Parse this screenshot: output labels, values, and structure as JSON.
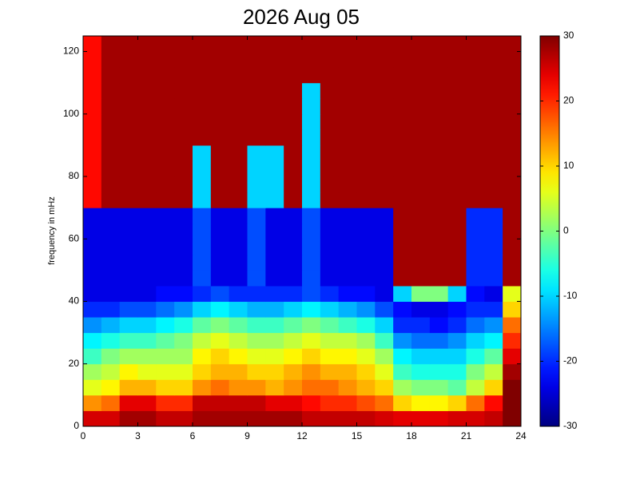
{
  "chart_data": {
    "type": "heatmap",
    "title": "2026 Aug 05",
    "y_label": "frequency in mHz",
    "colormap": "jet",
    "x_edges": [
      0,
      1,
      2,
      3,
      4,
      5,
      6,
      7,
      8,
      9,
      10,
      11,
      12,
      13,
      14,
      15,
      16,
      17,
      18,
      19,
      20,
      21,
      22,
      23,
      24
    ],
    "y_edges": [
      0,
      5,
      10,
      15,
      20,
      25,
      30,
      35,
      40,
      45,
      50,
      55,
      60,
      65,
      70,
      75,
      80,
      85,
      90,
      95,
      100,
      105,
      110,
      115,
      120,
      125
    ],
    "xlim": [
      0,
      24
    ],
    "xticks": [
      0,
      3,
      6,
      9,
      12,
      15,
      18,
      21,
      24
    ],
    "ylim": [
      0,
      125
    ],
    "yticks": [
      0,
      20,
      40,
      60,
      80,
      100,
      120
    ],
    "clim": [
      -30,
      30
    ],
    "cticks": [
      -30,
      -20,
      -10,
      0,
      10,
      20,
      30
    ],
    "values": [
      [
        25,
        25,
        28,
        28,
        26,
        26,
        28,
        28,
        28,
        28,
        28,
        28,
        26,
        26,
        26,
        26,
        25,
        24,
        24,
        24,
        25,
        25,
        26,
        30
      ],
      [
        14,
        16,
        24,
        24,
        20,
        20,
        26,
        26,
        26,
        26,
        24,
        24,
        22,
        20,
        20,
        18,
        16,
        10,
        8,
        8,
        10,
        16,
        22,
        30
      ],
      [
        6,
        8,
        12,
        12,
        10,
        10,
        14,
        16,
        14,
        14,
        12,
        14,
        16,
        16,
        14,
        12,
        10,
        2,
        0,
        0,
        -2,
        4,
        10,
        30
      ],
      [
        2,
        4,
        8,
        6,
        6,
        6,
        10,
        12,
        12,
        10,
        10,
        12,
        14,
        12,
        12,
        10,
        6,
        -4,
        -6,
        -6,
        -6,
        0,
        4,
        28
      ],
      [
        -4,
        0,
        2,
        2,
        2,
        2,
        8,
        10,
        8,
        6,
        6,
        8,
        10,
        8,
        8,
        6,
        2,
        -8,
        -10,
        -10,
        -10,
        -6,
        -2,
        24
      ],
      [
        -8,
        -6,
        -4,
        -4,
        -2,
        0,
        4,
        6,
        4,
        2,
        2,
        4,
        6,
        4,
        4,
        2,
        -4,
        -14,
        -16,
        -16,
        -14,
        -10,
        -8,
        20
      ],
      [
        -14,
        -12,
        -10,
        -10,
        -8,
        -6,
        -2,
        0,
        -2,
        -4,
        -4,
        -2,
        0,
        -2,
        -4,
        -6,
        -10,
        -20,
        -20,
        -22,
        -20,
        -16,
        -14,
        16
      ],
      [
        -20,
        -20,
        -18,
        -18,
        -16,
        -14,
        -10,
        -8,
        -10,
        -12,
        -12,
        -10,
        -8,
        -10,
        -12,
        -14,
        -18,
        -22,
        -24,
        -24,
        -22,
        -20,
        -20,
        10
      ],
      [
        -24,
        -24,
        -24,
        -24,
        -22,
        -22,
        -20,
        -18,
        -20,
        -20,
        -20,
        -20,
        -18,
        -20,
        -22,
        -22,
        -24,
        -10,
        0,
        0,
        -10,
        -22,
        -24,
        6
      ],
      [
        -24,
        -24,
        -24,
        -24,
        -24,
        -24,
        -18,
        -24,
        -24,
        -18,
        -24,
        -24,
        -18,
        -24,
        -24,
        -24,
        -24,
        28,
        28,
        28,
        28,
        -20,
        -20,
        28
      ],
      [
        -24,
        -24,
        -24,
        -24,
        -24,
        -24,
        -18,
        -24,
        -24,
        -18,
        -24,
        -24,
        -18,
        -24,
        -24,
        -24,
        -24,
        28,
        28,
        28,
        28,
        -20,
        -20,
        28
      ],
      [
        -24,
        -24,
        -24,
        -24,
        -24,
        -24,
        -18,
        -24,
        -24,
        -18,
        -24,
        -24,
        -18,
        -24,
        -24,
        -24,
        -24,
        28,
        28,
        28,
        28,
        -20,
        -20,
        28
      ],
      [
        -24,
        -24,
        -24,
        -24,
        -24,
        -24,
        -18,
        -24,
        -24,
        -18,
        -24,
        -24,
        -18,
        -24,
        -24,
        -24,
        -24,
        28,
        28,
        28,
        28,
        -20,
        -20,
        28
      ],
      [
        -24,
        -24,
        -24,
        -24,
        -24,
        -24,
        -18,
        -24,
        -24,
        -18,
        -24,
        -24,
        -18,
        -24,
        -24,
        -24,
        -24,
        28,
        28,
        28,
        28,
        -20,
        -20,
        28
      ],
      [
        22,
        28,
        28,
        28,
        28,
        28,
        -10,
        28,
        28,
        -10,
        -10,
        28,
        -10,
        28,
        28,
        28,
        28,
        28,
        28,
        28,
        28,
        28,
        28,
        28
      ],
      [
        22,
        28,
        28,
        28,
        28,
        28,
        -10,
        28,
        28,
        -10,
        -10,
        28,
        -10,
        28,
        28,
        28,
        28,
        28,
        28,
        28,
        28,
        28,
        28,
        28
      ],
      [
        22,
        28,
        28,
        28,
        28,
        28,
        -10,
        28,
        28,
        -10,
        -10,
        28,
        -10,
        28,
        28,
        28,
        28,
        28,
        28,
        28,
        28,
        28,
        28,
        28
      ],
      [
        22,
        28,
        28,
        28,
        28,
        28,
        -10,
        28,
        28,
        -10,
        -10,
        28,
        -10,
        28,
        28,
        28,
        28,
        28,
        28,
        28,
        28,
        28,
        28,
        28
      ],
      [
        22,
        28,
        28,
        28,
        28,
        28,
        28,
        28,
        28,
        28,
        28,
        28,
        -10,
        28,
        28,
        28,
        28,
        28,
        28,
        28,
        28,
        28,
        28,
        28
      ],
      [
        22,
        28,
        28,
        28,
        28,
        28,
        28,
        28,
        28,
        28,
        28,
        28,
        -10,
        28,
        28,
        28,
        28,
        28,
        28,
        28,
        28,
        28,
        28,
        28
      ],
      [
        22,
        28,
        28,
        28,
        28,
        28,
        28,
        28,
        28,
        28,
        28,
        28,
        -10,
        28,
        28,
        28,
        28,
        28,
        28,
        28,
        28,
        28,
        28,
        28
      ],
      [
        22,
        28,
        28,
        28,
        28,
        28,
        28,
        28,
        28,
        28,
        28,
        28,
        -10,
        28,
        28,
        28,
        28,
        28,
        28,
        28,
        28,
        28,
        28,
        28
      ],
      [
        22,
        28,
        28,
        28,
        28,
        28,
        28,
        28,
        28,
        28,
        28,
        28,
        28,
        28,
        28,
        28,
        28,
        28,
        28,
        28,
        28,
        28,
        28,
        28
      ],
      [
        22,
        28,
        28,
        28,
        28,
        28,
        28,
        28,
        28,
        28,
        28,
        28,
        28,
        28,
        28,
        28,
        28,
        28,
        28,
        28,
        28,
        28,
        28,
        28
      ],
      [
        22,
        28,
        28,
        28,
        28,
        28,
        28,
        28,
        28,
        28,
        28,
        28,
        28,
        28,
        28,
        28,
        28,
        28,
        28,
        28,
        28,
        28,
        28,
        28
      ]
    ]
  }
}
